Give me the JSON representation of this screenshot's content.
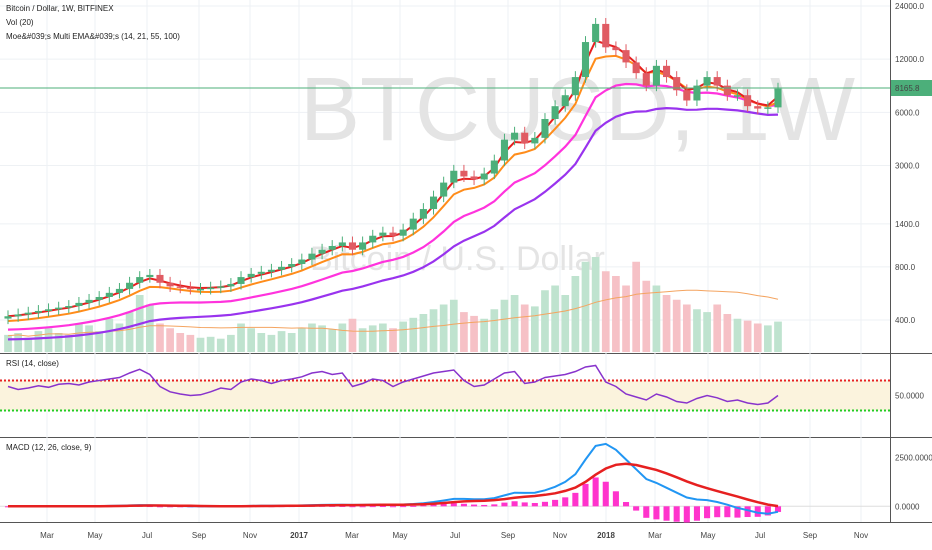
{
  "chart_data": [
    {
      "type": "candlestick",
      "panel": "price",
      "legend": [
        "Bitcoin / Dollar, 1W, BITFINEX",
        "Vol (20)",
        "Moe&#039;s Multi EMA&#039;s (14, 21, 55, 100)"
      ],
      "watermark": "BTCUSD, 1W",
      "watermark_sub": "Bitcoin / U.S. Dollar",
      "y_scale": "log",
      "y_ticks": [
        "24000.0",
        "12000.0",
        "6000.0",
        "3000.0",
        "1400.0",
        "800.0",
        "400.0"
      ],
      "last_price_label": "8165.8",
      "x_ticks": [
        "Mar",
        "May",
        "Jul",
        "Sep",
        "Nov",
        "2017",
        "Mar",
        "May",
        "Jul",
        "Sep",
        "Nov",
        "2018",
        "Mar",
        "May",
        "Jul",
        "Sep",
        "Nov"
      ],
      "x_ticks_bold": [
        "2017",
        "2018"
      ],
      "close_approx": [
        420,
        430,
        440,
        450,
        460,
        470,
        480,
        500,
        520,
        540,
        570,
        600,
        650,
        700,
        720,
        650,
        620,
        610,
        600,
        600,
        610,
        620,
        640,
        700,
        730,
        750,
        770,
        800,
        830,
        880,
        950,
        1000,
        1050,
        1100,
        1000,
        1100,
        1200,
        1250,
        1200,
        1300,
        1500,
        1700,
        2000,
        2400,
        2800,
        2600,
        2500,
        2700,
        3200,
        4200,
        4600,
        4000,
        4300,
        5500,
        6500,
        7500,
        9500,
        15000,
        19000,
        14000,
        13500,
        11500,
        10000,
        8500,
        11000,
        9500,
        8000,
        7000,
        8500,
        9500,
        8500,
        7500,
        7500,
        6500,
        6300,
        6400,
        8165
      ],
      "ema_colors": {
        "ema14": "#e62020",
        "ema21": "#ff8c1a",
        "ema55": "#ff33dd",
        "ema100": "#9933ee"
      },
      "up_color": "#4caf7a",
      "down_color": "#e05b63"
    },
    {
      "type": "bar",
      "panel": "volume",
      "label": "Vol (20)",
      "values_relative": [
        0.18,
        0.2,
        0.15,
        0.22,
        0.25,
        0.2,
        0.18,
        0.3,
        0.28,
        0.22,
        0.35,
        0.3,
        0.42,
        0.6,
        0.5,
        0.3,
        0.25,
        0.2,
        0.18,
        0.15,
        0.16,
        0.14,
        0.18,
        0.3,
        0.25,
        0.2,
        0.18,
        0.22,
        0.2,
        0.25,
        0.3,
        0.28,
        0.24,
        0.3,
        0.35,
        0.25,
        0.28,
        0.3,
        0.25,
        0.32,
        0.36,
        0.4,
        0.45,
        0.5,
        0.55,
        0.42,
        0.38,
        0.35,
        0.45,
        0.55,
        0.6,
        0.5,
        0.48,
        0.65,
        0.7,
        0.6,
        0.8,
        0.95,
        1.0,
        0.85,
        0.8,
        0.7,
        0.95,
        0.75,
        0.7,
        0.6,
        0.55,
        0.5,
        0.45,
        0.42,
        0.5,
        0.4,
        0.35,
        0.33,
        0.3,
        0.28,
        0.32
      ]
    },
    {
      "type": "line",
      "panel": "rsi",
      "label": "RSI (14, close)",
      "y_tick": "50.0000",
      "upper_band": 70,
      "lower_band": 30,
      "values": [
        62,
        58,
        60,
        63,
        61,
        65,
        66,
        64,
        68,
        70,
        72,
        74,
        80,
        85,
        78,
        62,
        55,
        52,
        50,
        51,
        55,
        60,
        58,
        68,
        72,
        70,
        66,
        70,
        72,
        75,
        80,
        82,
        78,
        80,
        62,
        66,
        72,
        70,
        62,
        68,
        72,
        76,
        80,
        82,
        84,
        70,
        62,
        64,
        72,
        80,
        82,
        66,
        68,
        74,
        76,
        78,
        82,
        88,
        90,
        68,
        62,
        52,
        48,
        44,
        52,
        48,
        42,
        40,
        46,
        50,
        47,
        42,
        44,
        40,
        38,
        40,
        50
      ],
      "line_color": "#8833cc",
      "band_colors": {
        "upper": "#e62020",
        "lower": "#22cc22",
        "fill": "#fbf3dd"
      }
    },
    {
      "type": "line",
      "panel": "macd",
      "label": "MACD (12, 26, close, 9)",
      "y_ticks": [
        "2500.0000",
        "0.0000"
      ],
      "zero_index": 0,
      "macd_values": [
        0,
        0,
        0,
        0,
        0,
        0,
        0,
        0,
        5,
        10,
        20,
        30,
        45,
        60,
        55,
        40,
        25,
        15,
        5,
        0,
        -5,
        -5,
        0,
        10,
        20,
        25,
        25,
        30,
        35,
        45,
        60,
        70,
        75,
        80,
        70,
        70,
        80,
        90,
        85,
        95,
        120,
        160,
        220,
        300,
        380,
        380,
        360,
        360,
        420,
        560,
        700,
        690,
        700,
        820,
        1000,
        1250,
        1650,
        2400,
        3100,
        3200,
        2900,
        2400,
        1900,
        1400,
        1200,
        950,
        700,
        450,
        350,
        320,
        220,
        80,
        -80,
        -200,
        -330,
        -380,
        -280
      ],
      "signal_values": [
        0,
        0,
        0,
        0,
        0,
        0,
        0,
        0,
        2,
        5,
        10,
        15,
        25,
        35,
        42,
        41,
        38,
        32,
        24,
        18,
        12,
        8,
        6,
        7,
        10,
        14,
        17,
        20,
        24,
        28,
        36,
        45,
        54,
        62,
        64,
        66,
        70,
        76,
        80,
        85,
        95,
        110,
        135,
        170,
        215,
        250,
        270,
        290,
        320,
        370,
        440,
        490,
        530,
        590,
        670,
        790,
        960,
        1250,
        1620,
        1940,
        2130,
        2180,
        2120,
        1990,
        1870,
        1690,
        1490,
        1280,
        1090,
        930,
        780,
        640,
        500,
        350,
        210,
        90,
        10
      ],
      "macd_color": "#2196f3",
      "signal_color": "#e62020",
      "histogram_color": "#ff33cc"
    }
  ]
}
